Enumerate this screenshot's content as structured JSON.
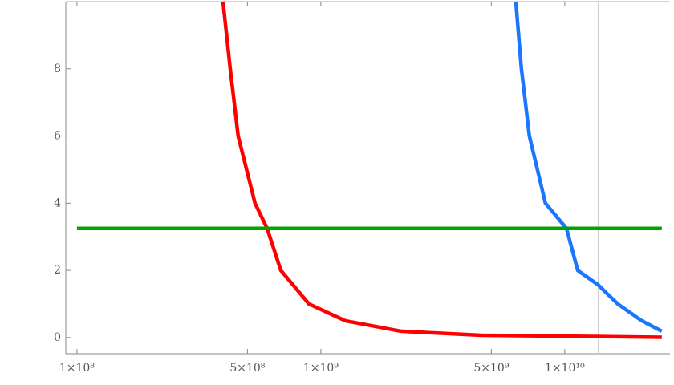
{
  "chart_data": {
    "type": "line",
    "xscale": "log",
    "xlim": [
      90000000,
      27000000000
    ],
    "ylim": [
      -0.48,
      10
    ],
    "xticks": [
      {
        "value": 100000000,
        "label": "1×10⁸"
      },
      {
        "value": 500000000,
        "label": "5×10⁸"
      },
      {
        "value": 1000000000,
        "label": "1×10⁹"
      },
      {
        "value": 5000000000,
        "label": "5×10⁹"
      },
      {
        "value": 10000000000,
        "label": "1×10¹⁰"
      }
    ],
    "yticks": [
      0,
      2,
      4,
      6,
      8
    ],
    "vlines": [
      13700000000
    ],
    "series": [
      {
        "color": "#ff0000",
        "x": [
          397000000,
          425000000,
          458000000,
          537000000,
          602000000,
          685000000,
          894000000,
          1260000000,
          2130000000,
          4550000000,
          25000000000
        ],
        "values": [
          10,
          8,
          6,
          4,
          3.25,
          2,
          1,
          0.5,
          0.19,
          0.07,
          0.01
        ]
      },
      {
        "color": "#1a75ff",
        "x": [
          6300000000,
          6640000000,
          7160000000,
          8330000000,
          10160000000,
          11300000000,
          13700000000,
          16500000000,
          20700000000,
          25000000000
        ],
        "values": [
          10,
          8,
          6,
          4,
          3.25,
          2,
          1.57,
          1,
          0.5,
          0.19
        ]
      },
      {
        "color": "#00a600",
        "x": [
          100000000,
          25000000000
        ],
        "values": [
          3.25,
          3.25
        ]
      }
    ]
  }
}
